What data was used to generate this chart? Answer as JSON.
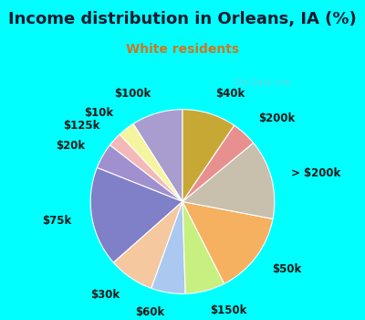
{
  "title": "Income distribution in Orleans, IA (%)",
  "subtitle": "White residents",
  "title_color": "#1a1a2e",
  "subtitle_color": "#cc7722",
  "bg_top": "#00ffff",
  "bg_chart": "#dff5e8",
  "watermark": "City-Data.com",
  "labels": [
    "$100k",
    "$10k",
    "$125k",
    "$20k",
    "$75k",
    "$30k",
    "$60k",
    "$150k",
    "$50k",
    "> $200k",
    "$200k",
    "$40k"
  ],
  "values": [
    9.0,
    3.0,
    2.5,
    4.5,
    17.5,
    8.0,
    6.0,
    7.0,
    14.5,
    14.0,
    4.5,
    9.5
  ],
  "colors": [
    "#a99ccf",
    "#f5f5a0",
    "#f5b8b8",
    "#a090d0",
    "#8080c8",
    "#f5c8a0",
    "#aac8f0",
    "#c8f080",
    "#f5b060",
    "#c8bfac",
    "#e89090",
    "#c8a835"
  ],
  "startangle": 90,
  "label_fontsize": 8.5,
  "title_fontsize": 13,
  "subtitle_fontsize": 10
}
